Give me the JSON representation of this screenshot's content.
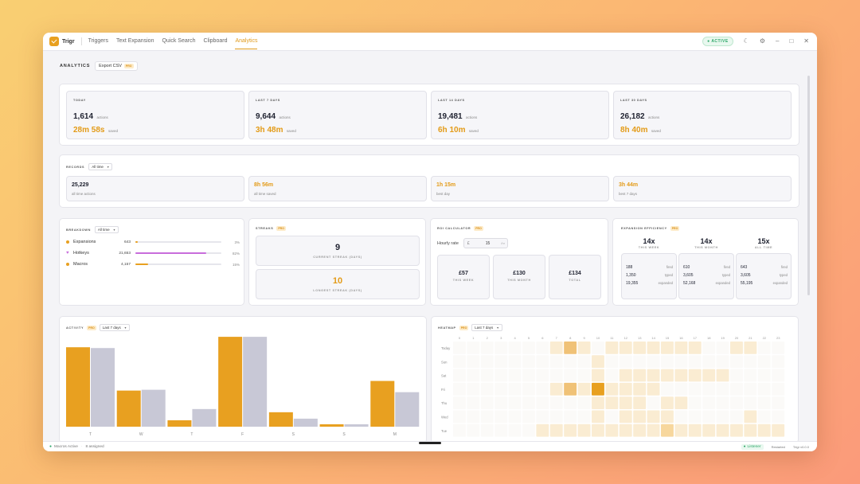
{
  "app": {
    "name": "Trigr"
  },
  "nav": [
    "Triggers",
    "Text Expansion",
    "Quick Search",
    "Clipboard",
    "Analytics"
  ],
  "titlebar": {
    "status": "ACTIVE"
  },
  "page": {
    "title": "ANALYTICS",
    "export_label": "Export CSV",
    "pro": "PRO"
  },
  "stats": [
    {
      "label": "TODAY",
      "count": "1,614",
      "count_unit": "actions",
      "saved": "28m 58s",
      "saved_unit": "saved"
    },
    {
      "label": "LAST 7 DAYS",
      "count": "9,644",
      "count_unit": "actions",
      "saved": "3h 48m",
      "saved_unit": "saved"
    },
    {
      "label": "LAST 14 DAYS",
      "count": "19,481",
      "count_unit": "actions",
      "saved": "6h 10m",
      "saved_unit": "saved"
    },
    {
      "label": "LAST 30 DAYS",
      "count": "26,182",
      "count_unit": "actions",
      "saved": "8h 40m",
      "saved_unit": "saved"
    }
  ],
  "records": {
    "label": "RECORDS",
    "range": "All time",
    "items": [
      {
        "value": "25,229",
        "caption": "all time actions"
      },
      {
        "value": "8h 56m",
        "caption": "all time saved"
      },
      {
        "value": "1h 15m",
        "caption": "best day"
      },
      {
        "value": "3h 44m",
        "caption": "best 7 days"
      }
    ]
  },
  "breakdown": {
    "label": "BREAKDOWN",
    "range": "All time",
    "items": [
      {
        "name": "Expansions",
        "count": "643",
        "pct": "3%",
        "fraction": 0.03,
        "color": "#e8a020"
      },
      {
        "name": "Hotkeys",
        "count": "21,653",
        "pct": "82%",
        "fraction": 0.82,
        "color": "#c86ddb"
      },
      {
        "name": "Macros",
        "count": "4,157",
        "pct": "15%",
        "fraction": 0.15,
        "color": "#e8a020"
      }
    ]
  },
  "streaks": {
    "label": "STREAKS",
    "current": {
      "value": "9",
      "caption": "CURRENT STREAK (DAYS)"
    },
    "longest": {
      "value": "10",
      "caption": "LONGEST STREAK (DAYS)"
    }
  },
  "roi": {
    "label": "ROI CALCULATOR",
    "rate_label": "Hourly rate",
    "currency": "£",
    "rate": "15",
    "rate_unit": "/hr",
    "items": [
      {
        "value": "£57",
        "caption": "THIS WEEK"
      },
      {
        "value": "£130",
        "caption": "THIS MONTH"
      },
      {
        "value": "£134",
        "caption": "TOTAL"
      }
    ]
  },
  "efficiency": {
    "label": "EXPANSION EFFICIENCY",
    "cols": [
      {
        "mult": "14x",
        "period": "THIS WEEK",
        "rows": [
          [
            "188",
            "fired"
          ],
          [
            "1,350",
            "typed"
          ],
          [
            "19,355",
            "expanded"
          ]
        ]
      },
      {
        "mult": "14x",
        "period": "THIS MONTH",
        "rows": [
          [
            "610",
            "fired"
          ],
          [
            "3,605",
            "typed"
          ],
          [
            "52,168",
            "expanded"
          ]
        ]
      },
      {
        "mult": "15x",
        "period": "ALL TIME",
        "rows": [
          [
            "643",
            "fired"
          ],
          [
            "3,605",
            "typed"
          ],
          [
            "55,195",
            "expanded"
          ]
        ]
      }
    ]
  },
  "activity": {
    "label": "ACTIVITY",
    "range": "Last 7 days"
  },
  "chart_data": {
    "type": "bar",
    "categories": [
      "T",
      "W",
      "T",
      "F",
      "S",
      "S",
      "M"
    ],
    "series": [
      {
        "values": [
          99,
          45,
          8,
          112,
          18,
          3,
          57
        ],
        "color": "#e8a020"
      },
      {
        "values": [
          98,
          46,
          22,
          112,
          10,
          3,
          43
        ],
        "color": "#c8c8d6"
      }
    ],
    "ylim": [
      0,
      125
    ],
    "grid": false,
    "legend": "none"
  },
  "heatmap": {
    "label": "HEATMAP",
    "range": "Last 7 days",
    "hours": [
      "0",
      "1",
      "2",
      "3",
      "4",
      "5",
      "6",
      "7",
      "8",
      "9",
      "10",
      "11",
      "12",
      "13",
      "14",
      "15",
      "16",
      "17",
      "18",
      "19",
      "20",
      "21",
      "22",
      "23"
    ],
    "days": [
      "Today",
      "Sun",
      "Sat",
      "Fri",
      "Thu",
      "Wed",
      "Tue"
    ],
    "cells": [
      [
        0,
        0,
        0,
        0,
        0,
        0,
        0,
        1,
        3,
        1,
        0,
        1,
        1,
        1,
        1,
        1,
        1,
        1,
        0,
        0,
        1,
        1,
        0,
        0
      ],
      [
        0,
        0,
        0,
        0,
        0,
        0,
        0,
        0,
        0,
        0,
        1,
        0,
        0,
        0,
        0,
        0,
        0,
        0,
        0,
        0,
        0,
        0,
        0,
        0
      ],
      [
        0,
        0,
        0,
        0,
        0,
        0,
        0,
        0,
        0,
        0,
        1,
        0,
        1,
        1,
        1,
        1,
        1,
        1,
        1,
        1,
        0,
        0,
        0,
        0
      ],
      [
        0,
        0,
        0,
        0,
        0,
        0,
        0,
        1,
        3,
        1,
        4,
        1,
        1,
        1,
        1,
        0,
        0,
        0,
        0,
        0,
        0,
        0,
        0,
        0
      ],
      [
        0,
        0,
        0,
        0,
        0,
        0,
        0,
        0,
        0,
        0,
        1,
        1,
        1,
        1,
        0,
        1,
        1,
        0,
        0,
        0,
        0,
        0,
        0,
        0
      ],
      [
        0,
        0,
        0,
        0,
        0,
        0,
        0,
        0,
        0,
        0,
        1,
        0,
        1,
        1,
        1,
        1,
        0,
        0,
        0,
        0,
        0,
        1,
        0,
        0
      ],
      [
        0,
        0,
        0,
        0,
        0,
        0,
        1,
        1,
        1,
        1,
        1,
        1,
        1,
        1,
        1,
        2,
        1,
        1,
        1,
        1,
        1,
        1,
        1,
        1
      ]
    ]
  },
  "statusbar": {
    "macros": "Macros Active",
    "assigned": "8 assigned",
    "listener": "Listener",
    "restarted": "Restarted",
    "version": "Trigr v0.0.0"
  }
}
